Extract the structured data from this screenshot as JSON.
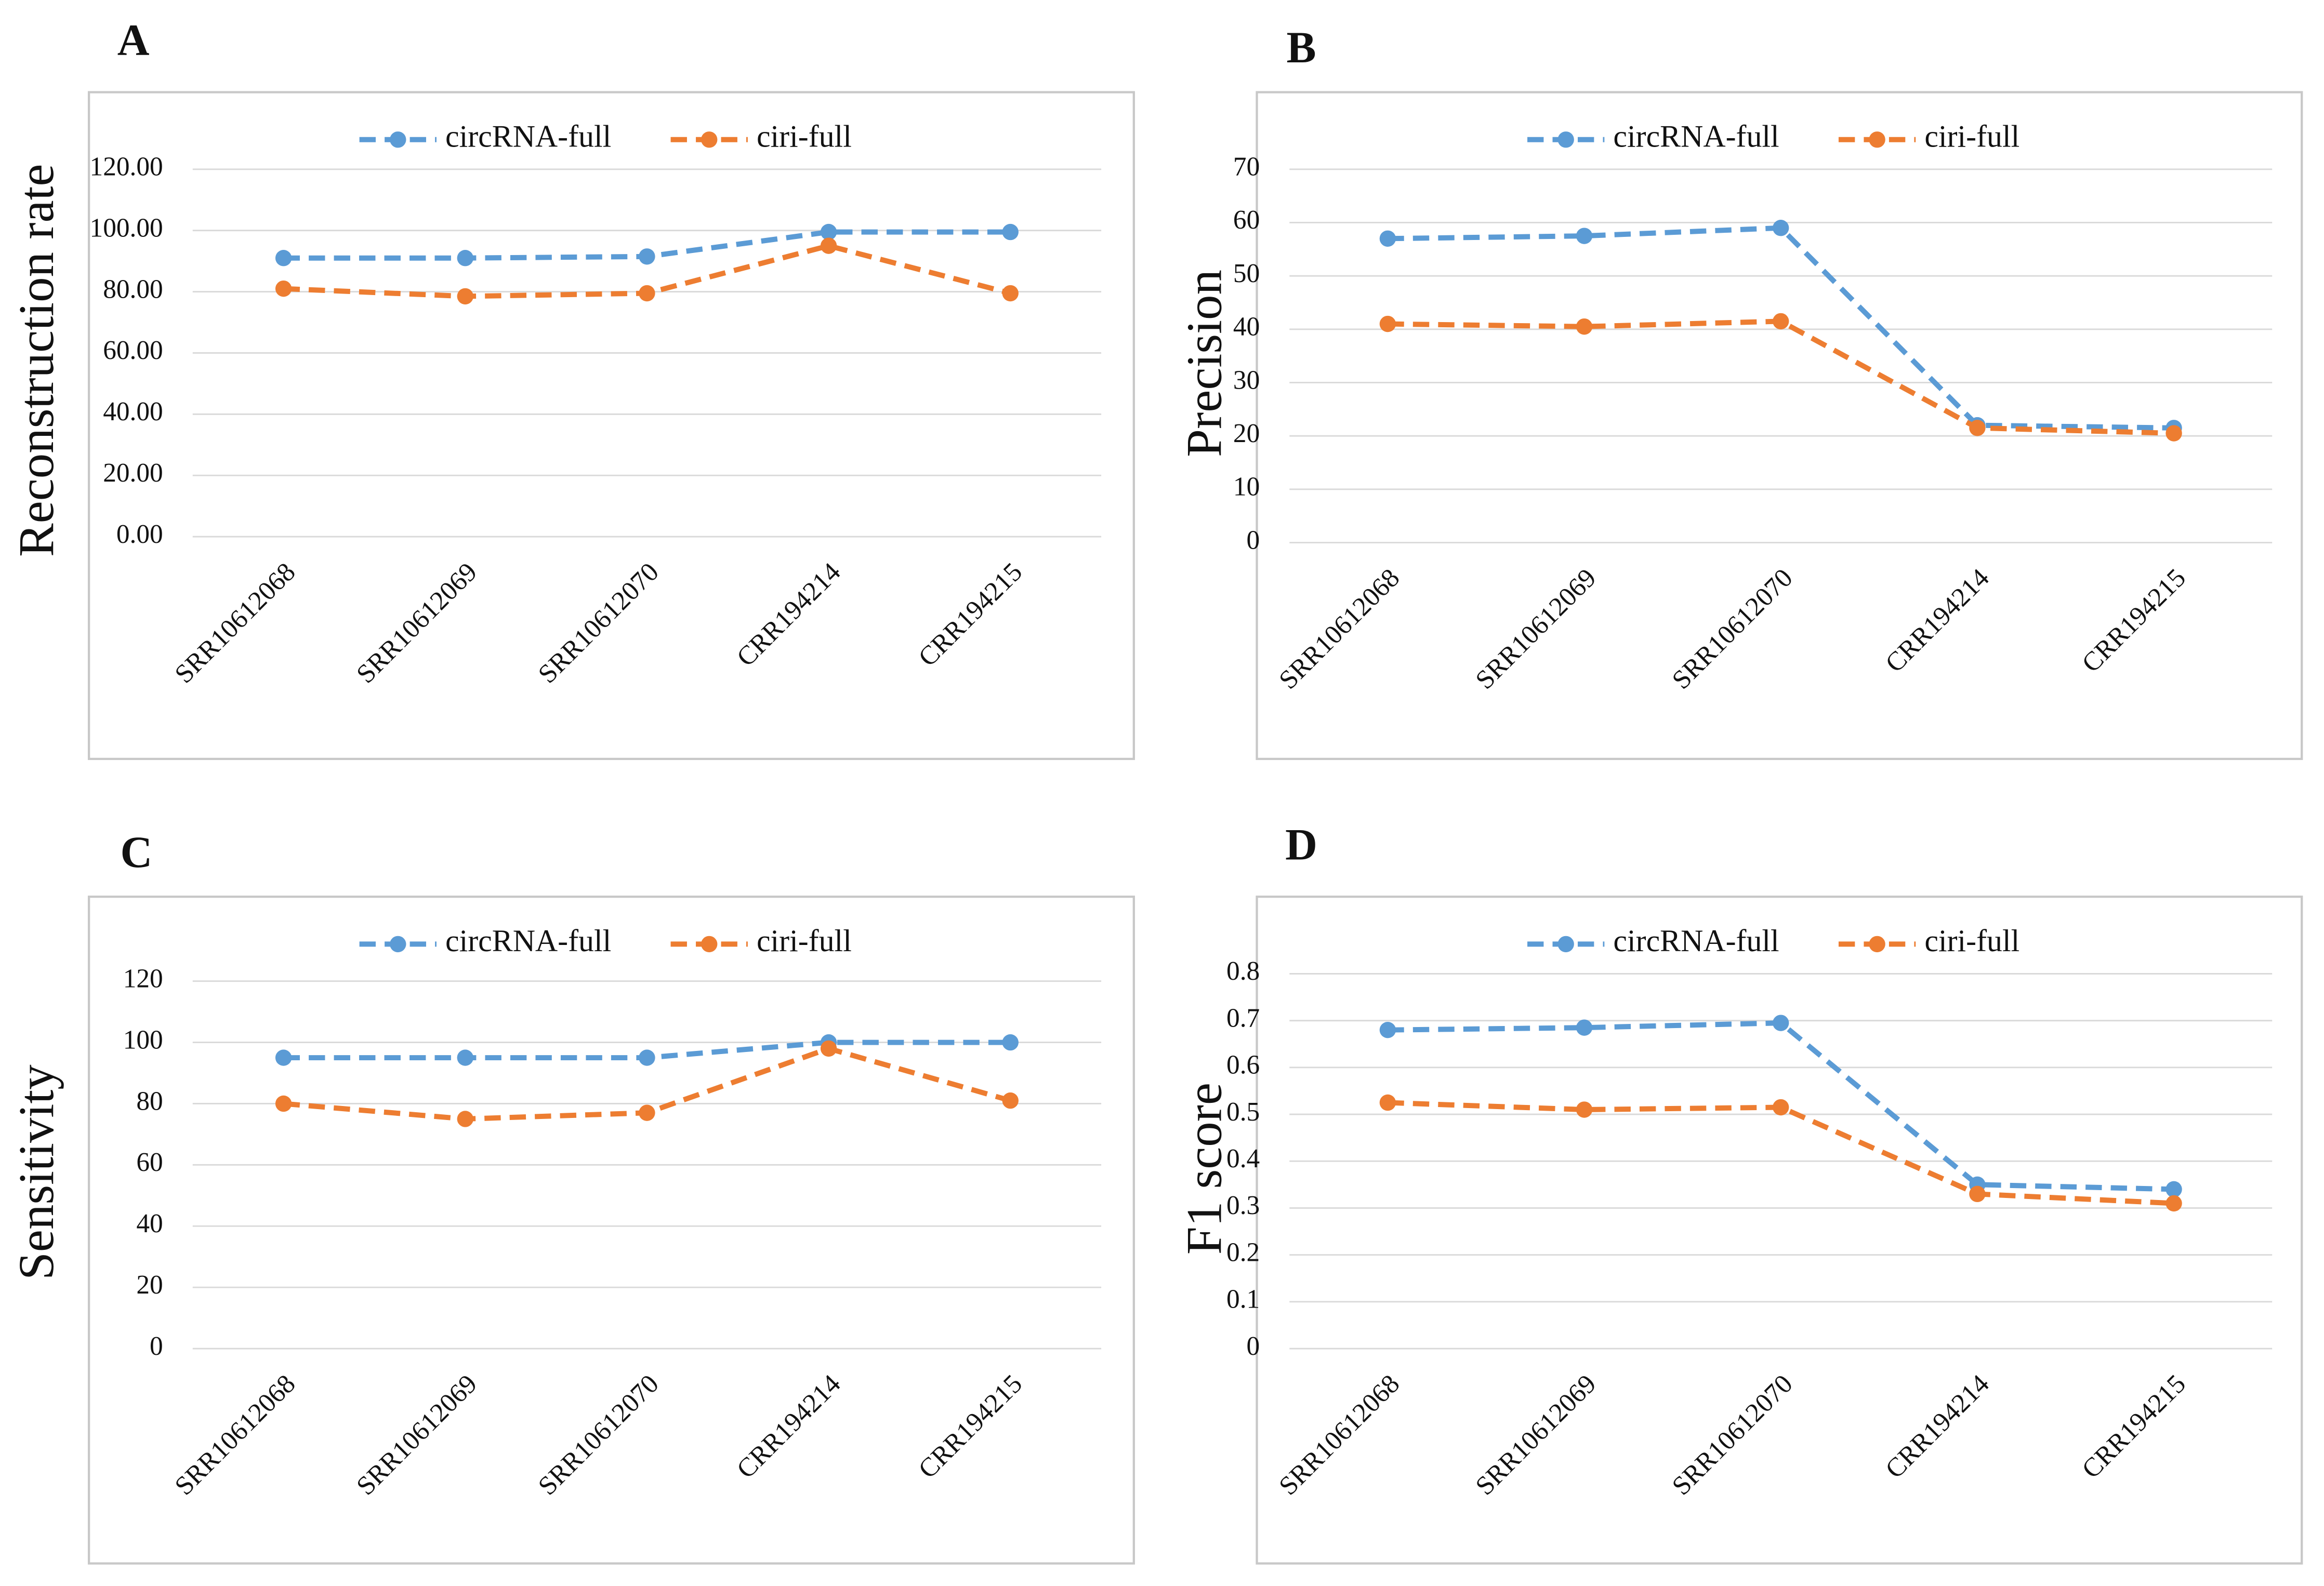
{
  "chart_data": [
    {
      "type": "line",
      "panel": "A",
      "y_label": "Reconstruction rate",
      "categories": [
        "SRR10612068",
        "SRR10612069",
        "SRR10612070",
        "CRR194214",
        "CRR194215"
      ],
      "series": [
        {
          "name": "circRNA-full",
          "color": "#5b9bd5",
          "values": [
            91,
            91,
            91.5,
            99.5,
            99.5
          ]
        },
        {
          "name": "ciri-full",
          "color": "#ed7d31",
          "values": [
            81,
            78.5,
            79.5,
            95,
            79.5
          ]
        }
      ],
      "ylim": [
        0,
        120
      ],
      "yticks": [
        {
          "value": 0,
          "label": "0.00"
        },
        {
          "value": 20,
          "label": "20.00"
        },
        {
          "value": 40,
          "label": "40.00"
        },
        {
          "value": 60,
          "label": "60.00"
        },
        {
          "value": 80,
          "label": "80.00"
        },
        {
          "value": 100,
          "label": "100.00"
        },
        {
          "value": 120,
          "label": "120.00"
        }
      ],
      "grid": true,
      "legend": "top"
    },
    {
      "type": "line",
      "panel": "B",
      "y_label": "Precision",
      "categories": [
        "SRR10612068",
        "SRR10612069",
        "SRR10612070",
        "CRR194214",
        "CRR194215"
      ],
      "series": [
        {
          "name": "circRNA-full",
          "color": "#5b9bd5",
          "values": [
            57,
            57.5,
            59,
            22,
            21.5
          ]
        },
        {
          "name": "ciri-full",
          "color": "#ed7d31",
          "values": [
            41,
            40.5,
            41.5,
            21.5,
            20.5
          ]
        }
      ],
      "ylim": [
        0,
        70
      ],
      "yticks": [
        0,
        10,
        20,
        30,
        40,
        50,
        60,
        70
      ],
      "grid": true,
      "legend": "top"
    },
    {
      "type": "line",
      "panel": "C",
      "y_label": "Sensitivity",
      "categories": [
        "SRR10612068",
        "SRR10612069",
        "SRR10612070",
        "CRR194214",
        "CRR194215"
      ],
      "series": [
        {
          "name": "circRNA-full",
          "color": "#5b9bd5",
          "values": [
            95,
            95,
            95,
            100,
            100
          ]
        },
        {
          "name": "ciri-full",
          "color": "#ed7d31",
          "values": [
            80,
            75,
            77,
            98,
            81
          ]
        }
      ],
      "ylim": [
        0,
        120
      ],
      "yticks": [
        0,
        20,
        40,
        60,
        80,
        100,
        120
      ],
      "grid": true,
      "legend": "top"
    },
    {
      "type": "line",
      "panel": "D",
      "y_label": "F1 score",
      "categories": [
        "SRR10612068",
        "SRR10612069",
        "SRR10612070",
        "CRR194214",
        "CRR194215"
      ],
      "series": [
        {
          "name": "circRNA-full",
          "color": "#5b9bd5",
          "values": [
            0.68,
            0.685,
            0.695,
            0.35,
            0.34
          ]
        },
        {
          "name": "ciri-full",
          "color": "#ed7d31",
          "values": [
            0.525,
            0.51,
            0.515,
            0.33,
            0.31
          ]
        }
      ],
      "ylim": [
        0,
        0.8
      ],
      "yticks": [
        0,
        0.1,
        0.2,
        0.3,
        0.4,
        0.5,
        0.6,
        0.7,
        0.8
      ],
      "grid": true,
      "legend": "top"
    }
  ]
}
